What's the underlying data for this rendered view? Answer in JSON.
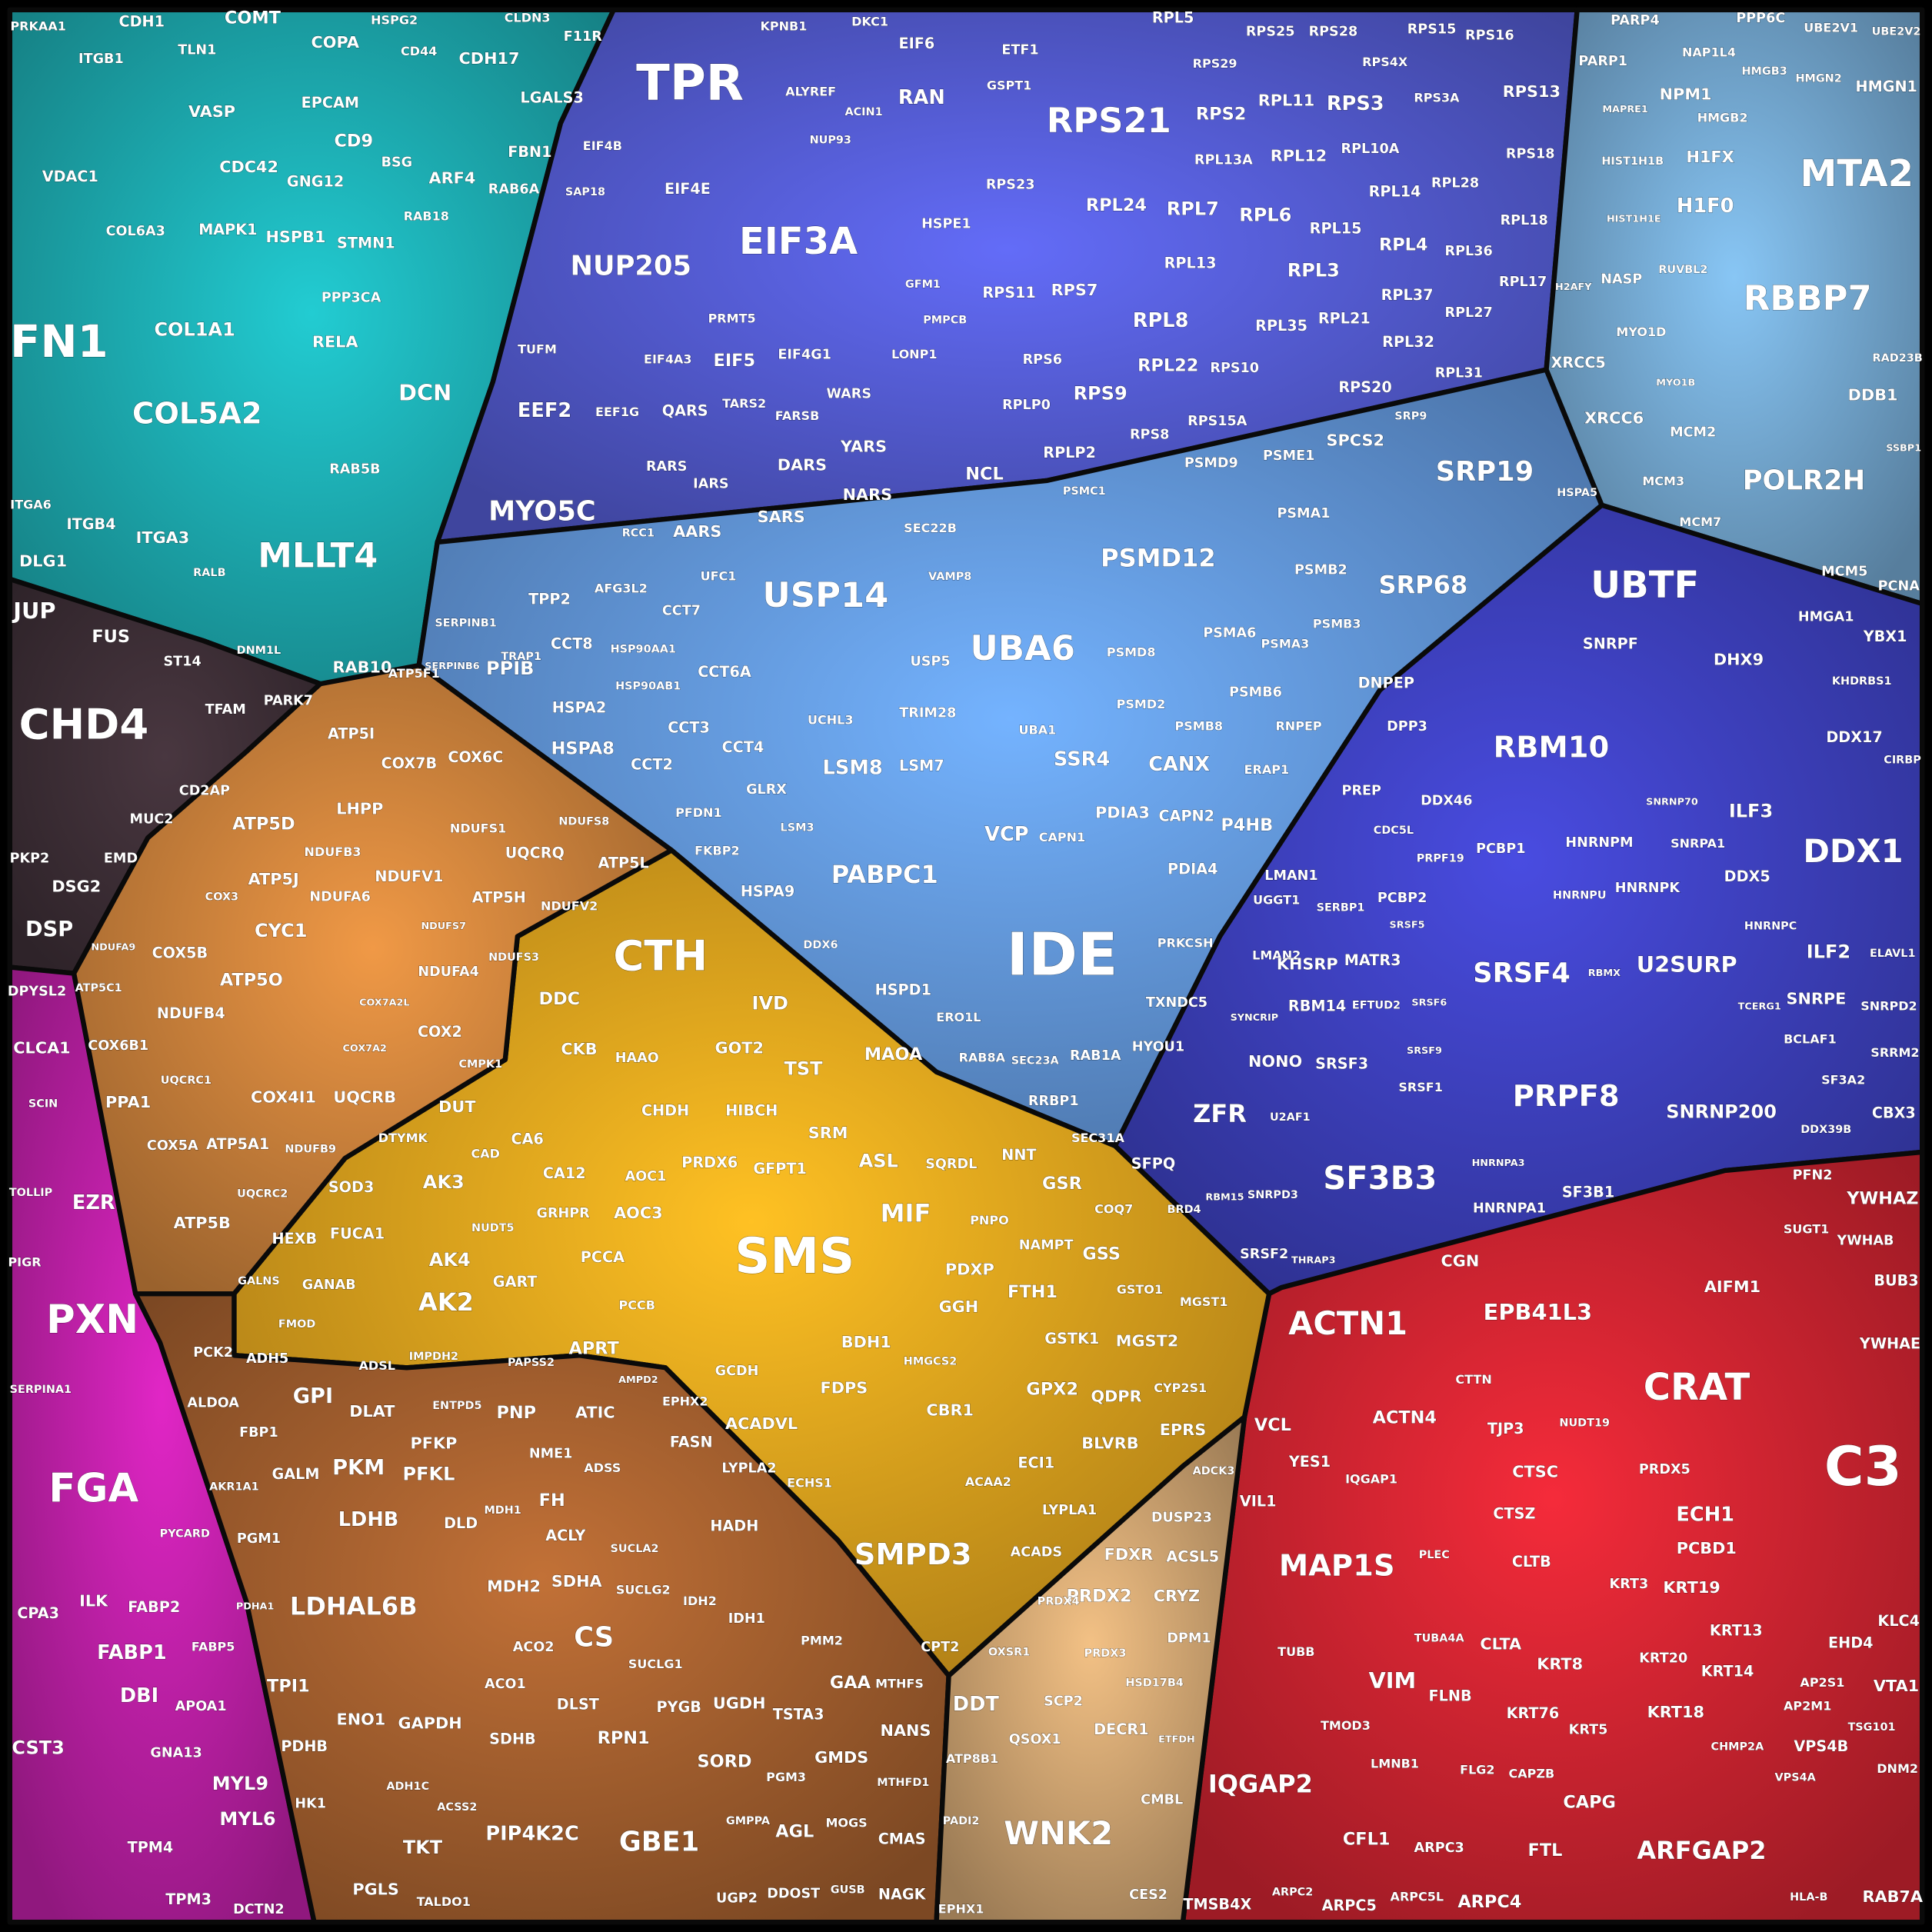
{
  "clusters": [
    {
      "color": "#1ba3a8",
      "labels": [
        "FN1",
        "COL5A2",
        "MLLT4",
        "DCN",
        "COL1A1",
        "HSPB1",
        "VASP",
        "CDH1",
        "TLN1",
        "ITGB1",
        "COMT",
        "COPA",
        "CDH17",
        "LGALS3",
        "FBN1",
        "ARF4",
        "CD9",
        "EPCAM",
        "BSG",
        "STMN1",
        "GNG12",
        "CDC42",
        "MAPK1",
        "PPP3CA",
        "RELA",
        "VDAC1",
        "COL6A3",
        "ITGA3",
        "ITGB4",
        "ITGA6",
        "DLG1",
        "RAB10",
        "RAB5B",
        "RAB6A",
        "PRKAA1",
        "F11R",
        "CLDN3",
        "HSPG2",
        "CD44",
        "RAB18",
        "DNM1L",
        "RALB"
      ]
    },
    {
      "color": "#3a2c33",
      "labels": [
        "CHD4",
        "JUP",
        "FUS",
        "ST14",
        "PARK7",
        "TFAM",
        "CD2AP",
        "MUC2",
        "DSG2",
        "DSP",
        "PKP2",
        "EMD"
      ]
    },
    {
      "color": "#b41e9e",
      "labels": [
        "PXN",
        "FGA",
        "EZR",
        "CLCA1",
        "DPYSL2",
        "FABP1",
        "DBI",
        "MYL9",
        "MYL6",
        "CST3",
        "ILK",
        "FABP2",
        "TPM4",
        "TPM3",
        "DCTN2",
        "APOA1",
        "CPA3",
        "GNA13",
        "PIGR",
        "SERPINA1",
        "SCIN",
        "TOLLIP",
        "FABP5",
        "PYCARD"
      ]
    },
    {
      "color": "#4f56c6",
      "labels": [
        "TPR",
        "EIF3A",
        "NUP205",
        "RPS21",
        "RAN",
        "EIF6",
        "ETF1",
        "EIF4E",
        "EIF5",
        "EIF4G1",
        "EIF4A3",
        "EEF2",
        "MYO5C",
        "AARS",
        "SARS",
        "NARS",
        "DARS",
        "YARS",
        "QARS",
        "WARS",
        "RARS",
        "IARS",
        "NCL",
        "HSPE1",
        "RPL8",
        "RPS9",
        "RPL22",
        "RPL7",
        "RPL6",
        "RPL3",
        "RPL4",
        "RPS3",
        "RPS2",
        "RPL11",
        "RPL12",
        "RPL24",
        "RPL13",
        "RPS7",
        "RPS11",
        "RPL35",
        "RPL21",
        "RPL32",
        "RPS20",
        "RPS10",
        "RPS15A",
        "RPS8",
        "RPLP2",
        "RPLP0",
        "RPS6",
        "RPL5",
        "RPS25",
        "RPS28",
        "RPS15",
        "RPS16",
        "RPS13",
        "RPL18",
        "RPL17",
        "RPL31",
        "RPL27",
        "RPL37",
        "RPL36",
        "RPL28",
        "RPL14",
        "RPL10A",
        "RPL15",
        "RPL13A",
        "RPS23",
        "RPS18",
        "RPS3A",
        "RPS4X",
        "RPS29",
        "KPNB1",
        "DKC1",
        "TUFM",
        "EIF4B",
        "SAP18",
        "EEF1G",
        "TARS2",
        "FARSB",
        "ALYREF",
        "ACIN1",
        "NUP93",
        "LONP1",
        "GFM1",
        "PMPCB",
        "PRMT5",
        "RCC1",
        "GSPT1"
      ]
    },
    {
      "color": "#5d8fd0",
      "labels": [
        "IDE",
        "USP14",
        "UBA6",
        "PSMD12",
        "PABPC1",
        "SRP19",
        "SRP68",
        "SSR4",
        "CANX",
        "VCP",
        "PDIA3",
        "CAPN2",
        "P4HB",
        "PDIA4",
        "LSM8",
        "LSM7",
        "HSPA8",
        "PPIB",
        "HSPA2",
        "HSPA9",
        "HSPD1",
        "SPCS2",
        "PSMD9",
        "PSME1",
        "PSMA1",
        "PSMB2",
        "PSMA6",
        "PSMA3",
        "PSMB3",
        "PSMD8",
        "PSMD2",
        "PSMB8",
        "PSMB6",
        "DNPEP",
        "DPP3",
        "RNPEP",
        "PREP",
        "ERAP1",
        "LMAN1",
        "UGGT1",
        "LMAN2",
        "PRKCSH",
        "TXNDC5",
        "HYOU1",
        "RAB1A",
        "RRBP1",
        "SEC31A",
        "CAPN1",
        "UBA1",
        "CCT2",
        "CCT3",
        "CCT4",
        "CCT6A",
        "CCT7",
        "CCT8",
        "TPP2",
        "AFG3L2",
        "HSP90AA1",
        "HSP90AB1",
        "GLRX",
        "PFDN1",
        "FKBP2",
        "TRIM28",
        "USP5",
        "UFC1",
        "SEC22B",
        "VAMP8",
        "SERPINB1",
        "SERPINB6",
        "TRAP1",
        "UCHL3",
        "LSM3",
        "DDX6",
        "ERO1L",
        "RAB8A",
        "SEC23A",
        "HSPA5",
        "SRP9",
        "PSMC1"
      ]
    },
    {
      "color": "#6d9ec4",
      "labels": [
        "MTA2",
        "RBBP7",
        "POLR2H",
        "H1F0",
        "H1FX",
        "NPM1",
        "XRCC6",
        "XRCC5",
        "MCM2",
        "MCM3",
        "MCM7",
        "MCM5",
        "PCNA",
        "DDB1",
        "HMGN1",
        "HMGB2",
        "NAP1L4",
        "PARP4",
        "PARP1",
        "PPP6C",
        "UBE2V1",
        "UBE2V2",
        "NASP",
        "MYO1D",
        "RUVBL2",
        "HMGB3",
        "HMGN2",
        "H2AFY",
        "HIST1H1B",
        "HIST1H1E",
        "MAPRE1",
        "RAD23B",
        "SSBP1",
        "MYO1B"
      ]
    },
    {
      "color": "#3a3db4",
      "labels": [
        "UBTF",
        "RBM10",
        "DDX1",
        "SRSF4",
        "PRPF8",
        "SF3B3",
        "U2SURP",
        "ZFR",
        "SNRNP200",
        "ILF3",
        "ILF2",
        "SNRPE",
        "SNRPF",
        "DHX9",
        "DDX17",
        "DDX5",
        "DDX46",
        "KHSRP",
        "MATR3",
        "RBM14",
        "NONO",
        "SRSF3",
        "SRSF1",
        "SFPQ",
        "SF3B1",
        "HNRNPA1",
        "SRSF2",
        "HNRNPM",
        "HNRNPK",
        "PCBP1",
        "PCBP2",
        "SNRPA1",
        "SNRPD2",
        "SRRM2",
        "CBX3",
        "SF3A2",
        "BCLAF1",
        "ELAVL1",
        "HMGA1",
        "YBX1",
        "KHDRBS1",
        "CIRBP",
        "CDC5L",
        "SERBP1",
        "PRPF19",
        "DDX39B",
        "HNRNPU",
        "HNRNPC",
        "TCERG1",
        "RBMX",
        "U2AF1",
        "SNRPD3",
        "BRD4",
        "RBM15",
        "THRAP3",
        "SYNCRIP",
        "EFTUD2",
        "SRSF6",
        "SRSF9",
        "SRSF5",
        "HNRNPA3",
        "SNRNP70"
      ]
    },
    {
      "color": "#c4222e",
      "labels": [
        "CRAT",
        "C3",
        "ACTN1",
        "EPB41L3",
        "MAP1S",
        "IQGAP2",
        "ARFGAP2",
        "VIM",
        "ACTN4",
        "VCL",
        "CFL1",
        "CAPG",
        "FTL",
        "KRT8",
        "KRT76",
        "KRT18",
        "KRT19",
        "KRT13",
        "KRT14",
        "KRT5",
        "KRT3",
        "KRT20",
        "CLTA",
        "CLTB",
        "CTSC",
        "CTSZ",
        "ECH1",
        "PCBD1",
        "PRDX5",
        "AIFM1",
        "YWHAZ",
        "YWHAB",
        "YWHAE",
        "BUB3",
        "PFN2",
        "SUGT1",
        "EHD4",
        "KLC4",
        "VTA1",
        "VPS4B",
        "VPS4A",
        "RAB7A",
        "DNM2",
        "AP2S1",
        "AP2M1",
        "ARPC4",
        "ARPC3",
        "ARPC5",
        "ARPC5L",
        "ARPC2",
        "TMSB4X",
        "FLNB",
        "FLG2",
        "TMOD3",
        "LMNB1",
        "TUBB",
        "TUBA4A",
        "PLEC",
        "VIL1",
        "YES1",
        "IQGAP1",
        "TJP3",
        "CGN",
        "CTTN",
        "NUDT19",
        "CAPZB",
        "CHMP2A",
        "TSG101",
        "HLA-B"
      ]
    },
    {
      "color": "#d49a1c",
      "labels": [
        "SMS",
        "CTH",
        "MIF",
        "ASL",
        "TST",
        "MAOA",
        "GOT2",
        "IVD",
        "DDC",
        "CKB",
        "HAAO",
        "CHDH",
        "HIBCH",
        "SRM",
        "PRDX6",
        "GFPT1",
        "AOC3",
        "AOC1",
        "CA12",
        "CA6",
        "GRHPR",
        "PCCA",
        "PCCB",
        "NNT",
        "GSR",
        "GSS",
        "NAMPT",
        "PDXP",
        "FTH1",
        "GGH",
        "GSTK1",
        "MGST2",
        "GPX2",
        "QDPR",
        "EPRS",
        "BLVRB",
        "CYP2S1",
        "GSTO1",
        "MGST1",
        "COQ7",
        "PNPO",
        "SQRDL",
        "BDH1",
        "HMGCS2",
        "CBR1",
        "FDPS",
        "ACADVL",
        "GCDH",
        "EPHX2",
        "FASN",
        "LYPLA2",
        "ECHS1",
        "HADH",
        "SMPD3",
        "ACADS",
        "ACAA2",
        "ECI1",
        "LYPLA1",
        "CPT2",
        "APRT",
        "AMPD2",
        "ATIC",
        "ADSS",
        "NME1",
        "PNP",
        "PAPSS2",
        "AK2",
        "AK4",
        "GART",
        "AK3",
        "DUT",
        "CAD",
        "DTYMK",
        "SOD3",
        "FUCA1",
        "HEXB",
        "GANAB",
        "GALNS",
        "FMOD",
        "ADSL",
        "IMPDH2",
        "ENTPD5",
        "NUDT5",
        "CMPK1"
      ]
    },
    {
      "color": "#c07a38",
      "labels": [
        "ATP5D",
        "ATP5I",
        "COX7B",
        "COX6C",
        "LHPP",
        "NDUFB3",
        "NDUFS1",
        "UQCRQ",
        "NDUFV1",
        "ATP5J",
        "NDUFA6",
        "ATP5H",
        "NDUFV2",
        "CYC1",
        "COX5B",
        "ATP5O",
        "NDUFB4",
        "NDUFA4",
        "NDUFS3",
        "COX2",
        "COX6B1",
        "PPA1",
        "COX4I1",
        "UQCRB",
        "COX5A",
        "ATP5A1",
        "ATP5B",
        "ATP5L",
        "ATP5F1",
        "UQCRC1",
        "UQCRC2",
        "NDUFB9",
        "COX3",
        "ATP5C1",
        "NDUFS8",
        "NDUFA9",
        "COX7A2L",
        "COX7A2",
        "NDUFS7"
      ]
    },
    {
      "color": "#9b5a2c",
      "labels": [
        "LDHAL6B",
        "GPI",
        "PKM",
        "PFKL",
        "PFKP",
        "LDHB",
        "DLAT",
        "GALM",
        "DLD",
        "FBP1",
        "ALDOA",
        "PCK2",
        "ADH5",
        "PGM1",
        "AKR1A1",
        "PDHA1",
        "TPI1",
        "ENO1",
        "GAPDH",
        "PDHB",
        "HK1",
        "ADH1C",
        "ACSS2",
        "PGLS",
        "TKT",
        "TALDO1",
        "FH",
        "ACLY",
        "SDHA",
        "MDH2",
        "CS",
        "ACO2",
        "ACO1",
        "DLST",
        "SDHB",
        "RPN1",
        "SUCLG1",
        "SUCLG2",
        "SUCLA2",
        "IDH2",
        "IDH1",
        "PIP4K2C",
        "GBE1",
        "PYGB",
        "UGDH",
        "SORD",
        "TSTA3",
        "GAA",
        "GMDS",
        "PGM3",
        "AGL",
        "GMPPA",
        "MOGS",
        "UGP2",
        "DDOST",
        "GUSB",
        "PMM2",
        "NANS",
        "MTHFS",
        "CMAS",
        "NAGK",
        "MTHFD1",
        "MDH1"
      ]
    },
    {
      "color": "#c29a6a",
      "labels": [
        "WNK2",
        "DDT",
        "PRDX2",
        "CRYZ",
        "FDXR",
        "ACSL5",
        "DUSP23",
        "ADCK3",
        "DPM1",
        "PRDX3",
        "PRDX4",
        "SCP2",
        "QSOX1",
        "DECR1",
        "HSD17B4",
        "CMBL",
        "ATP8B1",
        "PADI2",
        "CES2",
        "EPHX1",
        "ETFDH",
        "OXSR1"
      ]
    }
  ]
}
